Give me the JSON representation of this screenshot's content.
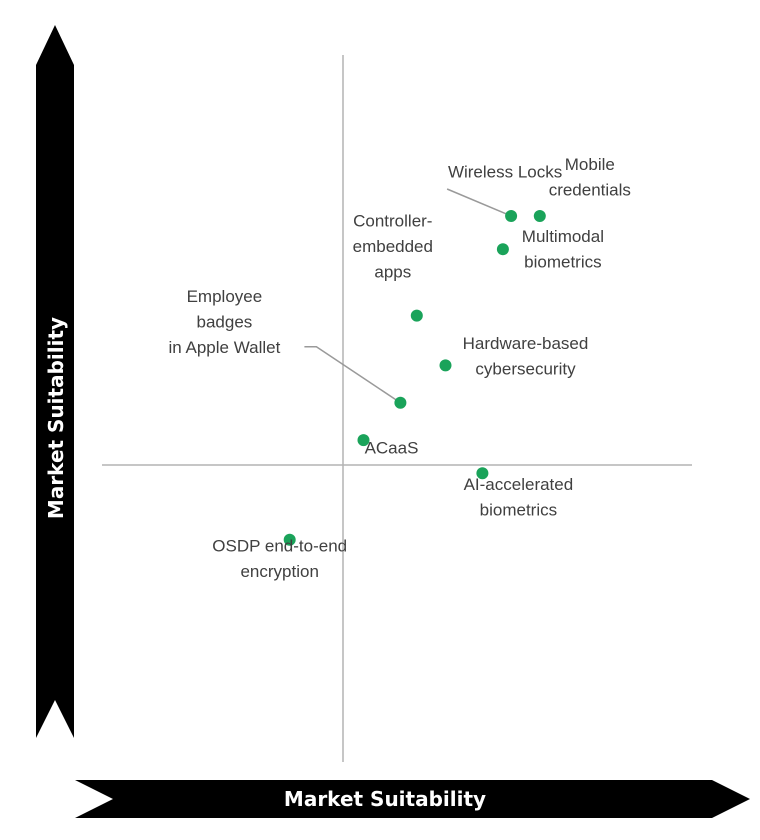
{
  "chart_data": {
    "type": "scatter",
    "xlabel": "Market Suitability",
    "ylabel": "Market Suitability",
    "xlim": [
      -10,
      10
    ],
    "ylim": [
      -10,
      10
    ],
    "grid": false,
    "point_color": "#1aa35a",
    "points": [
      {
        "label": "Wireless Locks",
        "x": 4.1,
        "y": 6.0
      },
      {
        "label": "Mobile credentials",
        "x": 4.8,
        "y": 6.0
      },
      {
        "label": "Multimodal biometrics",
        "x": 3.9,
        "y": 5.2
      },
      {
        "label": "Controller- embedded apps",
        "x": 1.8,
        "y": 3.6
      },
      {
        "label": "Hardware-based cybersecurity",
        "x": 2.5,
        "y": 2.4
      },
      {
        "label": "Employee badges in Apple Wallet",
        "x": 1.4,
        "y": 1.5
      },
      {
        "label": "ACaaS",
        "x": 0.5,
        "y": 0.6
      },
      {
        "label": "AI-accelerated biometrics",
        "x": 3.4,
        "y": -0.2
      },
      {
        "label": "OSDP end-to-end encryption",
        "x": -1.3,
        "y": -1.8
      }
    ]
  }
}
